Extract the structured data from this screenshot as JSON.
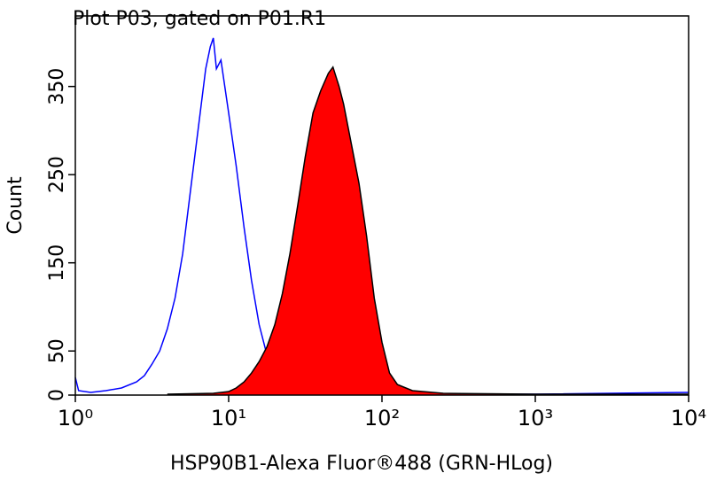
{
  "chart_data": {
    "type": "histogram-overlay",
    "title": "Plot P03, gated on P01.R1",
    "x_label": "HSP90B1-Alexa Fluor®488 (GRN-HLog)",
    "y_label": "Count",
    "xscale": "log",
    "xlim": [
      1,
      10000
    ],
    "xticks": [
      {
        "value": 1,
        "label": "10⁰"
      },
      {
        "value": 10,
        "label": "10¹"
      },
      {
        "value": 100,
        "label": "10²"
      },
      {
        "value": 1000,
        "label": "10³"
      },
      {
        "value": 10000,
        "label": "10⁴"
      }
    ],
    "ylim": [
      0,
      430
    ],
    "yticks": [
      0,
      50,
      150,
      250,
      350
    ],
    "series": [
      {
        "color": "#0000ff",
        "filled": false,
        "x": [
          1,
          1.05,
          1.26,
          1.58,
          2.0,
          2.51,
          2.82,
          3.16,
          3.55,
          3.98,
          4.47,
          5.01,
          5.62,
          6.31,
          7.08,
          7.59,
          7.94,
          8.32,
          8.91,
          10,
          11.2,
          12.6,
          14.1,
          15.8,
          17.8,
          20,
          22.4,
          28.2,
          39.8,
          100,
          1000,
          10000
        ],
        "values": [
          20,
          5,
          3,
          5,
          8,
          15,
          22,
          35,
          50,
          75,
          110,
          160,
          230,
          300,
          370,
          395,
          405,
          370,
          380,
          320,
          260,
          190,
          130,
          80,
          45,
          22,
          10,
          4,
          2,
          1,
          1,
          3
        ]
      },
      {
        "color": "#ff0000",
        "filled": true,
        "x": [
          3.98,
          7.94,
          10,
          11.2,
          12.6,
          14.1,
          15.8,
          17.8,
          20,
          22.4,
          25.1,
          28.2,
          31.6,
          35.5,
          39.8,
          44.7,
          47.9,
          52.5,
          56.2,
          63.1,
          70.8,
          79.4,
          89.1,
          100,
          112,
          126,
          158,
          251,
          1000,
          10000
        ],
        "values": [
          1,
          2,
          4,
          8,
          15,
          25,
          38,
          55,
          80,
          115,
          160,
          215,
          270,
          320,
          345,
          365,
          372,
          350,
          330,
          285,
          240,
          180,
          110,
          60,
          25,
          12,
          5,
          2,
          1,
          1
        ]
      }
    ]
  }
}
